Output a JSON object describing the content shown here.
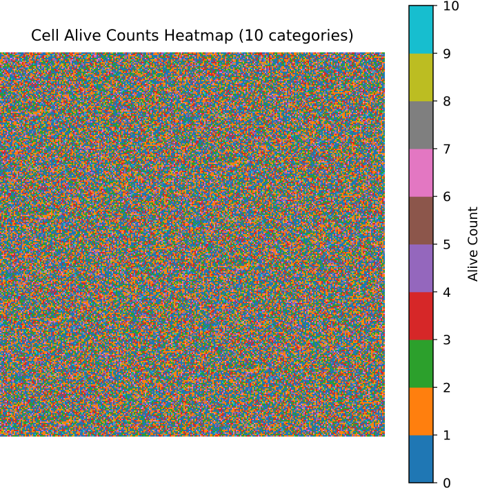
{
  "chart_data": {
    "type": "heatmap",
    "title": "Cell Alive Counts Heatmap (10 categories)",
    "categories": 10,
    "value_range": [
      0,
      10
    ],
    "grid_axes_visible": false,
    "colorbar": {
      "label": "Alive Count",
      "ticks": [
        "0",
        "1",
        "2",
        "3",
        "4",
        "5",
        "6",
        "7",
        "8",
        "9",
        "10"
      ],
      "colors": [
        "#1f77b4",
        "#ff7f0e",
        "#2ca02c",
        "#d62728",
        "#9467bd",
        "#8c564b",
        "#e377c2",
        "#7f7f7f",
        "#bcbd22",
        "#17becf"
      ]
    },
    "cell_distribution_note_weights": [
      0.3,
      0.2,
      0.16,
      0.1,
      0.07,
      0.05,
      0.04,
      0.03,
      0.03,
      0.02
    ]
  }
}
